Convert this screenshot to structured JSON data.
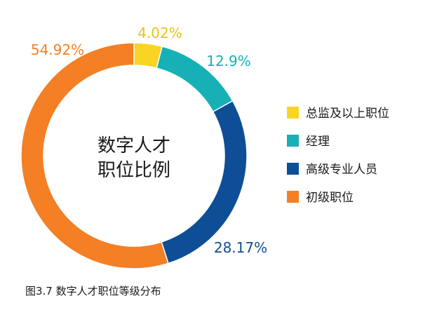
{
  "caption": "图3.7 数字人才职位等级分布",
  "chart_data": {
    "type": "pie",
    "center_label": [
      "数字人才",
      "职位比例"
    ],
    "categories": [
      "总监及以上职位",
      "经理",
      "高级专业人员",
      "初级职位"
    ],
    "values": [
      4.02,
      12.9,
      28.17,
      54.92
    ],
    "value_labels": [
      "4.02%",
      "12.9%",
      "28.17%",
      "54.92%"
    ],
    "colors": [
      "#f9d423",
      "#17b0b7",
      "#0d4e96",
      "#f47f24"
    ],
    "legend": {
      "entries": [
        "总监及以上职位",
        "经理",
        "高级专业人员",
        "初级职位"
      ],
      "position": "right"
    }
  }
}
